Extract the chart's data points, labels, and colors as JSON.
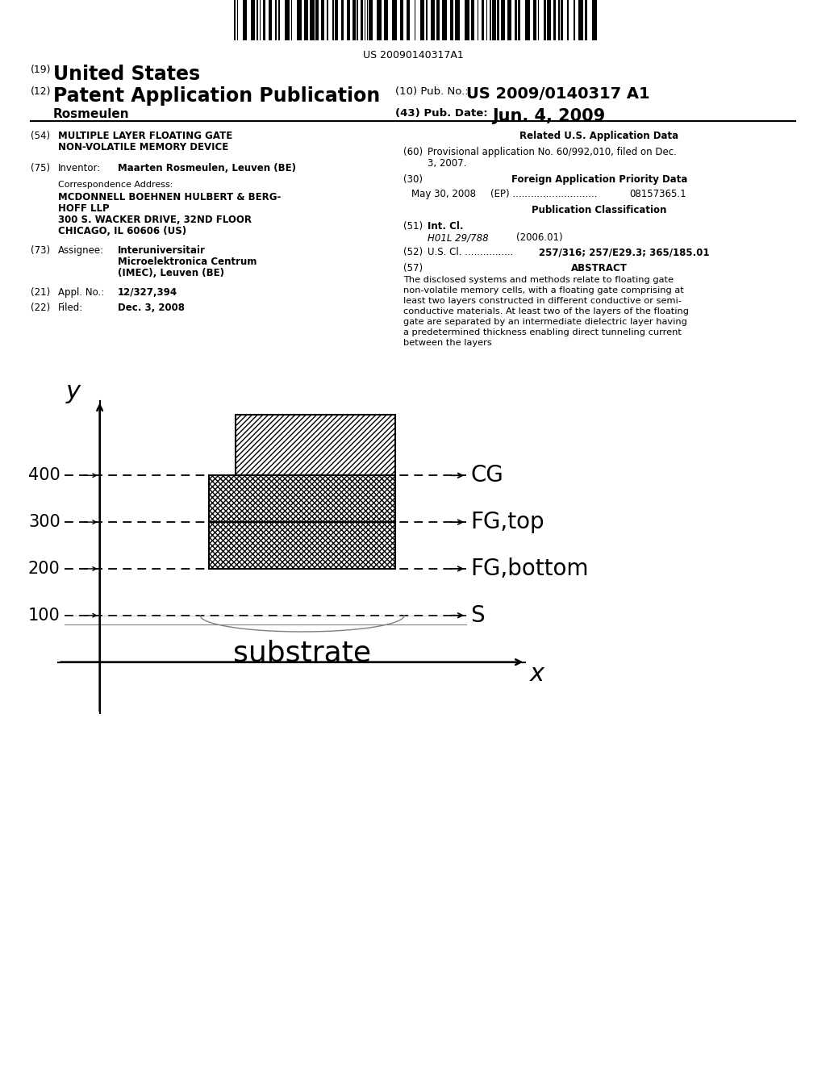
{
  "bg_color": "#ffffff",
  "barcode_text": "US 20090140317A1",
  "header_line1_num": "(19)",
  "header_line1_text": "United States",
  "header_line2_num": "(12)",
  "header_line2_text": "Patent Application Publication",
  "header_pub_num_label": "(10) Pub. No.: ",
  "header_pub_num_val": "US 2009/0140317 A1",
  "header_name": "Rosmeulen",
  "header_date_label": "(43) Pub. Date:",
  "header_date_val": "Jun. 4, 2009",
  "field54_num": "(54)",
  "field54_line1": "MULTIPLE LAYER FLOATING GATE",
  "field54_line2": "NON-VOLATILE MEMORY DEVICE",
  "field75_num": "(75)",
  "field75_label": "Inventor:",
  "field75_val": "Maarten Rosmeulen, Leuven (BE)",
  "corr_label": "Correspondence Address:",
  "corr_line1": "MCDONNELL BOEHNEN HULBERT & BERG-",
  "corr_line2": "HOFF LLP",
  "corr_addr1": "300 S. WACKER DRIVE, 32ND FLOOR",
  "corr_addr2": "CHICAGO, IL 60606 (US)",
  "field73_num": "(73)",
  "field73_label": "Assignee:",
  "field73_line1": "Interuniversitair",
  "field73_line2": "Microelektronica Centrum",
  "field73_line3": "(IMEC), Leuven (BE)",
  "field21_num": "(21)",
  "field21_label": "Appl. No.:",
  "field21_val": "12/327,394",
  "field22_num": "(22)",
  "field22_label": "Filed:",
  "field22_val": "Dec. 3, 2008",
  "right_related_header": "Related U.S. Application Data",
  "field60_num": "(60)",
  "field60_line1": "Provisional application No. 60/992,010, filed on Dec.",
  "field60_line2": "3, 2007.",
  "field30_num": "(30)",
  "field30_header": "Foreign Application Priority Data",
  "field30_line": "May 30, 2008     (EP) ........................... 08157365.1",
  "pub_class_header": "Publication Classification",
  "field51_num": "(51)",
  "field51_label": "Int. Cl.",
  "field51_class": "H01L 29/788",
  "field51_year": "(2006.01)",
  "field52_num": "(52)",
  "field52_label": "U.S. Cl. ................",
  "field52_val": "257/316; 257/E29.3; 365/185.01",
  "field57_num": "(57)",
  "field57_label": "ABSTRACT",
  "abstract_line1": "The disclosed systems and methods relate to floating gate",
  "abstract_line2": "non-volatile memory cells, with a floating gate comprising at",
  "abstract_line3": "least two layers constructed in different conductive or semi-",
  "abstract_line4": "conductive materials. At least two of the layers of the floating",
  "abstract_line5": "gate are separated by an intermediate dielectric layer having",
  "abstract_line6": "a predetermined thickness enabling direct tunneling current",
  "abstract_line7": "between the layers",
  "diagram_y_label": "y",
  "diagram_x_label": "x",
  "substrate_label": "substrate"
}
